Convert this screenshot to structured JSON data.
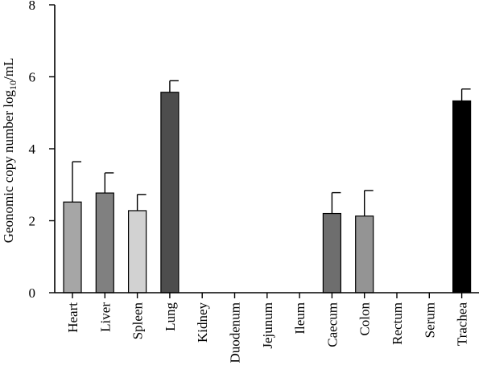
{
  "chart_data": {
    "type": "bar",
    "categories": [
      "Heart",
      "Liver",
      "Spleen",
      "Lung",
      "Kidney",
      "Duodenum",
      "Jejunum",
      "Ileum",
      "Caecum",
      "Colon",
      "Rectum",
      "Serum",
      "Trachea"
    ],
    "values": [
      2.52,
      2.77,
      2.28,
      5.57,
      0,
      0,
      0,
      0,
      2.2,
      2.13,
      0,
      0,
      5.33
    ],
    "errors": [
      1.12,
      0.56,
      0.45,
      0.32,
      0,
      0,
      0,
      0,
      0.58,
      0.71,
      0,
      0,
      0.33
    ],
    "colors": [
      "#a6a6a6",
      "#808080",
      "#d2d2d2",
      "#4d4d4d",
      "#ffffff",
      "#ffffff",
      "#ffffff",
      "#ffffff",
      "#6e6e6e",
      "#949494",
      "#ffffff",
      "#ffffff",
      "#000000"
    ],
    "title": "",
    "xlabel": "",
    "ylabel_prefix": "Geonomic copy number log",
    "ylabel_sub": "10",
    "ylabel_suffix": "/mL",
    "ylim": [
      0,
      8
    ],
    "yticks": [
      0,
      2,
      4,
      6,
      8
    ],
    "grid": false
  }
}
